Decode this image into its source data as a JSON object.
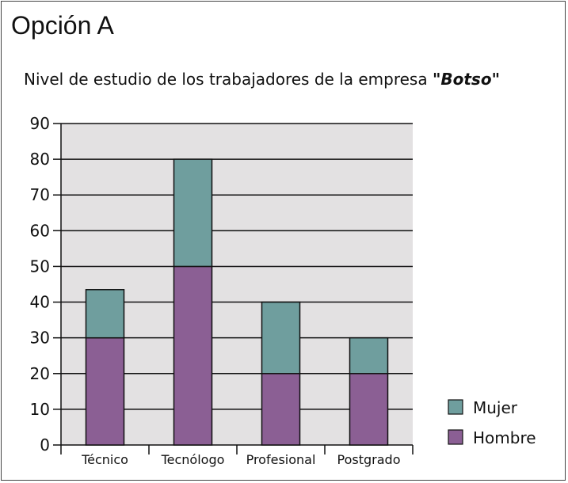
{
  "option_title": "Opción A",
  "chart_data": {
    "type": "bar",
    "stacked": true,
    "title_prefix": "Nivel de estudio de los trabajadores de la empresa ",
    "title_company": "\"Botso\"",
    "categories": [
      "Técnico",
      "Tecnólogo",
      "Profesional",
      "Postgrado"
    ],
    "series": [
      {
        "name": "Hombre",
        "values": [
          30,
          50,
          20,
          20
        ],
        "color": "#8b5f94"
      },
      {
        "name": "Mujer",
        "values": [
          13.5,
          30,
          20,
          10
        ],
        "color": "#6f9e9e"
      }
    ],
    "ylim": [
      0,
      90
    ],
    "yticks": [
      0,
      10,
      20,
      30,
      40,
      50,
      60,
      70,
      80,
      90
    ],
    "grid": true,
    "plot_background": "#e3e1e2",
    "legend_position": "bottom-right",
    "legend_order": [
      "Mujer",
      "Hombre"
    ]
  }
}
